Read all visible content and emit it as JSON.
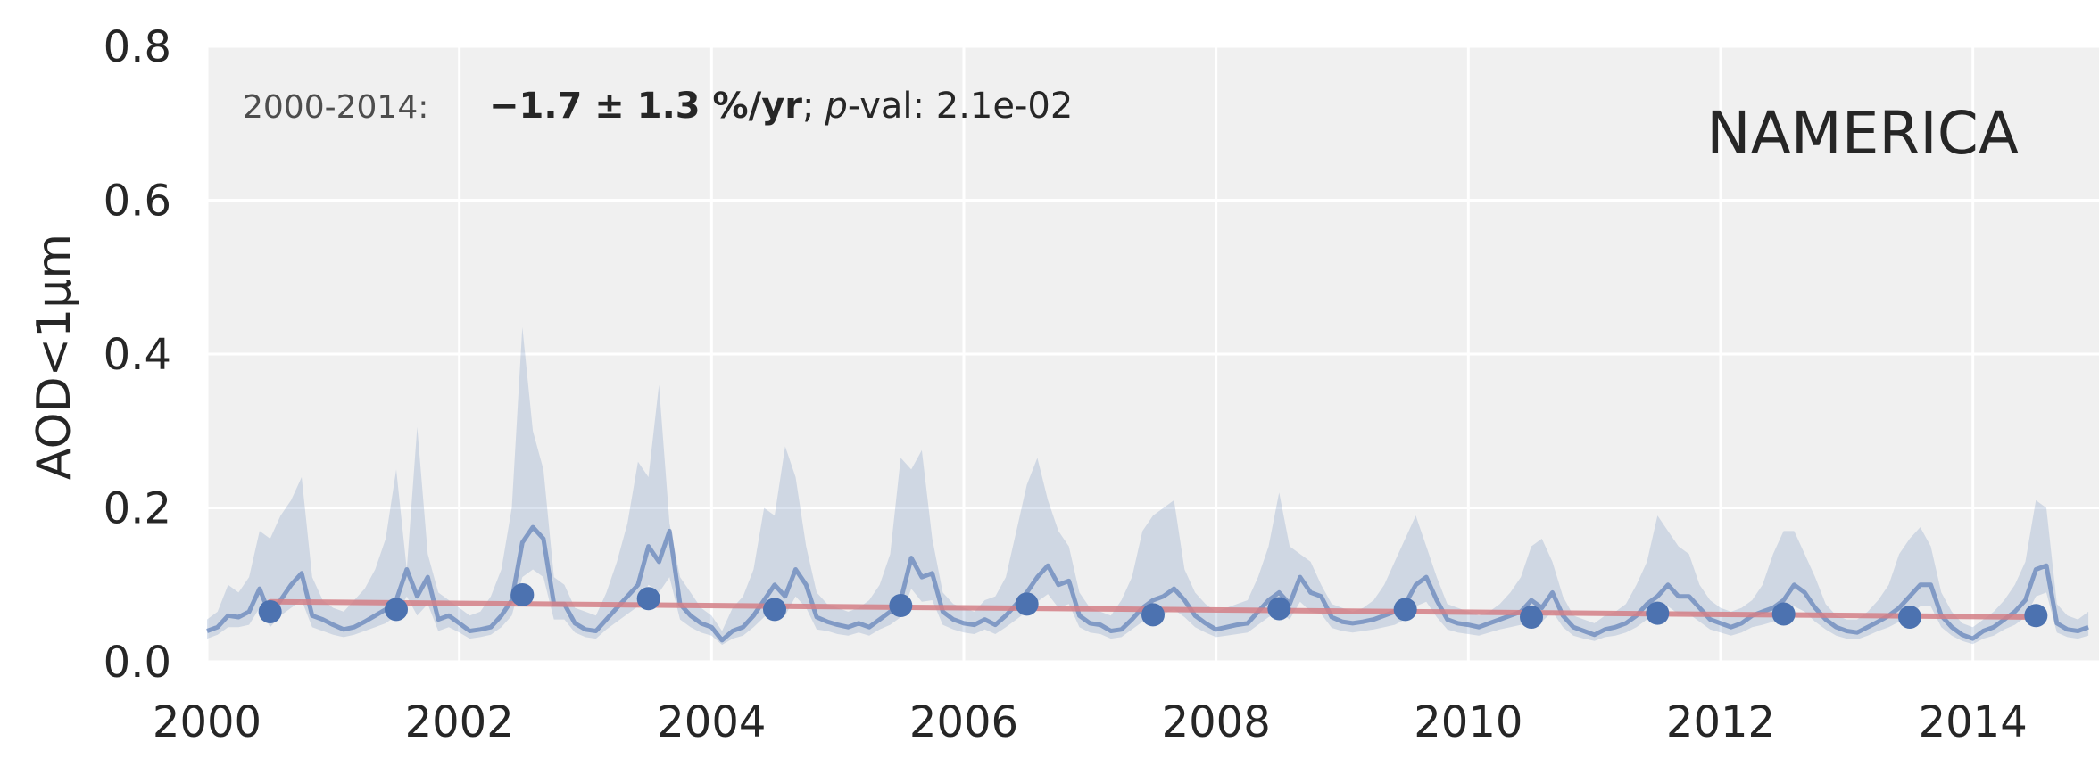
{
  "chart_data": {
    "type": "line",
    "ylabel": "AOD<1µm",
    "region_label": "NAMERICA",
    "annotation": {
      "period": "2000-2014:",
      "trend": "−1.7 ± 1.3 %/yr",
      "sep": ";",
      "p_prefix": "p",
      "p_rest": "-val: 2.1e-02"
    },
    "xlim": [
      2000,
      2015
    ],
    "ylim": [
      0.0,
      0.8
    ],
    "x_ticks": [
      "2000",
      "2002",
      "2004",
      "2006",
      "2008",
      "2010",
      "2012",
      "2014"
    ],
    "x_tick_values": [
      2000,
      2002,
      2004,
      2006,
      2008,
      2010,
      2012,
      2014
    ],
    "y_ticks": [
      "0.0",
      "0.2",
      "0.4",
      "0.6",
      "0.8"
    ],
    "y_tick_values": [
      0.0,
      0.2,
      0.4,
      0.6,
      0.8
    ],
    "grid": true,
    "colors": {
      "background": "#f0f0f0",
      "grid": "#ffffff",
      "monthly_line": "#4c72b0",
      "band": "#4c72b0",
      "annual_points": "#4c72b0",
      "trend_line": "#d47f86",
      "text": "#262626"
    },
    "series": [
      {
        "kind": "monthly",
        "x_start": 2000.0,
        "x_step": 0.08333,
        "values": [
          0.04,
          0.045,
          0.06,
          0.058,
          0.065,
          0.095,
          0.06,
          0.08,
          0.1,
          0.115,
          0.06,
          0.055,
          0.048,
          0.042,
          0.045,
          0.052,
          0.06,
          0.068,
          0.08,
          0.12,
          0.085,
          0.11,
          0.055,
          0.06,
          0.05,
          0.04,
          0.042,
          0.045,
          0.06,
          0.08,
          0.155,
          0.175,
          0.16,
          0.075,
          0.075,
          0.05,
          0.042,
          0.04,
          0.055,
          0.07,
          0.085,
          0.1,
          0.15,
          0.13,
          0.17,
          0.075,
          0.06,
          0.05,
          0.045,
          0.028,
          0.04,
          0.045,
          0.06,
          0.08,
          0.1,
          0.085,
          0.12,
          0.1,
          0.058,
          0.052,
          0.048,
          0.045,
          0.05,
          0.045,
          0.055,
          0.065,
          0.08,
          0.135,
          0.11,
          0.115,
          0.065,
          0.055,
          0.05,
          0.048,
          0.055,
          0.048,
          0.06,
          0.075,
          0.09,
          0.11,
          0.125,
          0.1,
          0.105,
          0.06,
          0.05,
          0.048,
          0.04,
          0.042,
          0.055,
          0.07,
          0.08,
          0.085,
          0.095,
          0.08,
          0.06,
          0.05,
          0.042,
          0.045,
          0.048,
          0.05,
          0.065,
          0.08,
          0.09,
          0.075,
          0.11,
          0.09,
          0.085,
          0.058,
          0.052,
          0.05,
          0.052,
          0.055,
          0.06,
          0.065,
          0.075,
          0.1,
          0.11,
          0.08,
          0.055,
          0.05,
          0.048,
          0.045,
          0.05,
          0.055,
          0.06,
          0.065,
          0.08,
          0.07,
          0.09,
          0.06,
          0.045,
          0.04,
          0.035,
          0.042,
          0.045,
          0.05,
          0.06,
          0.075,
          0.085,
          0.1,
          0.085,
          0.085,
          0.07,
          0.055,
          0.05,
          0.045,
          0.05,
          0.06,
          0.065,
          0.07,
          0.08,
          0.1,
          0.09,
          0.07,
          0.055,
          0.045,
          0.04,
          0.038,
          0.045,
          0.052,
          0.06,
          0.07,
          0.085,
          0.1,
          0.1,
          0.06,
          0.045,
          0.035,
          0.03,
          0.04,
          0.045,
          0.055,
          0.065,
          0.08,
          0.12,
          0.125,
          0.05,
          0.042,
          0.04,
          0.045
        ],
        "upper": [
          0.055,
          0.065,
          0.1,
          0.09,
          0.11,
          0.17,
          0.16,
          0.19,
          0.21,
          0.24,
          0.11,
          0.08,
          0.07,
          0.065,
          0.08,
          0.095,
          0.12,
          0.16,
          0.25,
          0.12,
          0.305,
          0.14,
          0.09,
          0.08,
          0.07,
          0.06,
          0.065,
          0.085,
          0.12,
          0.2,
          0.435,
          0.3,
          0.25,
          0.11,
          0.1,
          0.07,
          0.065,
          0.06,
          0.09,
          0.13,
          0.18,
          0.26,
          0.24,
          0.36,
          0.18,
          0.11,
          0.09,
          0.07,
          0.06,
          0.04,
          0.07,
          0.085,
          0.12,
          0.2,
          0.19,
          0.28,
          0.24,
          0.15,
          0.09,
          0.075,
          0.07,
          0.065,
          0.07,
          0.08,
          0.1,
          0.14,
          0.265,
          0.25,
          0.275,
          0.16,
          0.09,
          0.075,
          0.07,
          0.065,
          0.08,
          0.085,
          0.11,
          0.17,
          0.23,
          0.265,
          0.21,
          0.17,
          0.15,
          0.09,
          0.07,
          0.065,
          0.06,
          0.08,
          0.11,
          0.17,
          0.19,
          0.2,
          0.21,
          0.12,
          0.09,
          0.075,
          0.065,
          0.07,
          0.075,
          0.08,
          0.11,
          0.15,
          0.22,
          0.15,
          0.14,
          0.13,
          0.1,
          0.075,
          0.07,
          0.065,
          0.07,
          0.08,
          0.1,
          0.13,
          0.16,
          0.19,
          0.15,
          0.11,
          0.075,
          0.07,
          0.065,
          0.06,
          0.065,
          0.075,
          0.09,
          0.11,
          0.15,
          0.16,
          0.13,
          0.085,
          0.06,
          0.055,
          0.05,
          0.06,
          0.065,
          0.075,
          0.1,
          0.13,
          0.19,
          0.17,
          0.15,
          0.14,
          0.1,
          0.08,
          0.07,
          0.065,
          0.07,
          0.08,
          0.1,
          0.14,
          0.17,
          0.17,
          0.14,
          0.11,
          0.075,
          0.06,
          0.055,
          0.055,
          0.065,
          0.08,
          0.1,
          0.14,
          0.16,
          0.175,
          0.15,
          0.09,
          0.065,
          0.05,
          0.045,
          0.055,
          0.065,
          0.08,
          0.1,
          0.13,
          0.21,
          0.2,
          0.075,
          0.06,
          0.055,
          0.065
        ],
        "lower": [
          0.03,
          0.035,
          0.045,
          0.045,
          0.048,
          0.07,
          0.045,
          0.06,
          0.07,
          0.08,
          0.045,
          0.04,
          0.035,
          0.032,
          0.035,
          0.04,
          0.045,
          0.05,
          0.06,
          0.085,
          0.06,
          0.075,
          0.04,
          0.045,
          0.038,
          0.03,
          0.032,
          0.035,
          0.045,
          0.06,
          0.11,
          0.12,
          0.11,
          0.055,
          0.055,
          0.038,
          0.032,
          0.03,
          0.042,
          0.052,
          0.062,
          0.072,
          0.1,
          0.09,
          0.11,
          0.055,
          0.045,
          0.038,
          0.034,
          0.022,
          0.03,
          0.034,
          0.045,
          0.058,
          0.07,
          0.06,
          0.085,
          0.07,
          0.042,
          0.04,
          0.036,
          0.034,
          0.038,
          0.034,
          0.042,
          0.048,
          0.058,
          0.095,
          0.078,
          0.08,
          0.048,
          0.042,
          0.038,
          0.036,
          0.042,
          0.036,
          0.045,
          0.055,
          0.065,
          0.078,
          0.088,
          0.07,
          0.075,
          0.045,
          0.038,
          0.036,
          0.03,
          0.032,
          0.042,
          0.052,
          0.058,
          0.062,
          0.068,
          0.058,
          0.045,
          0.038,
          0.032,
          0.034,
          0.036,
          0.038,
          0.048,
          0.058,
          0.065,
          0.055,
          0.078,
          0.065,
          0.062,
          0.044,
          0.04,
          0.038,
          0.04,
          0.042,
          0.045,
          0.048,
          0.055,
          0.072,
          0.078,
          0.058,
          0.042,
          0.038,
          0.036,
          0.034,
          0.038,
          0.042,
          0.045,
          0.048,
          0.058,
          0.052,
          0.065,
          0.045,
          0.034,
          0.03,
          0.027,
          0.032,
          0.034,
          0.038,
          0.045,
          0.055,
          0.062,
          0.072,
          0.062,
          0.062,
          0.052,
          0.042,
          0.038,
          0.034,
          0.038,
          0.045,
          0.048,
          0.052,
          0.058,
          0.072,
          0.065,
          0.052,
          0.042,
          0.034,
          0.03,
          0.029,
          0.034,
          0.04,
          0.045,
          0.052,
          0.062,
          0.072,
          0.072,
          0.045,
          0.034,
          0.027,
          0.023,
          0.03,
          0.034,
          0.042,
          0.048,
          0.058,
          0.085,
          0.09,
          0.038,
          0.032,
          0.03,
          0.034
        ]
      },
      {
        "kind": "annual",
        "x": [
          2000.5,
          2001.5,
          2002.5,
          2003.5,
          2004.5,
          2005.5,
          2006.5,
          2007.5,
          2008.5,
          2009.5,
          2010.5,
          2011.5,
          2012.5,
          2013.5,
          2014.5
        ],
        "values": [
          0.065,
          0.068,
          0.087,
          0.082,
          0.068,
          0.073,
          0.075,
          0.061,
          0.069,
          0.068,
          0.058,
          0.063,
          0.062,
          0.058,
          0.06
        ]
      },
      {
        "kind": "trend",
        "x": [
          2000.5,
          2014.5
        ],
        "values": [
          0.078,
          0.058
        ]
      }
    ]
  }
}
